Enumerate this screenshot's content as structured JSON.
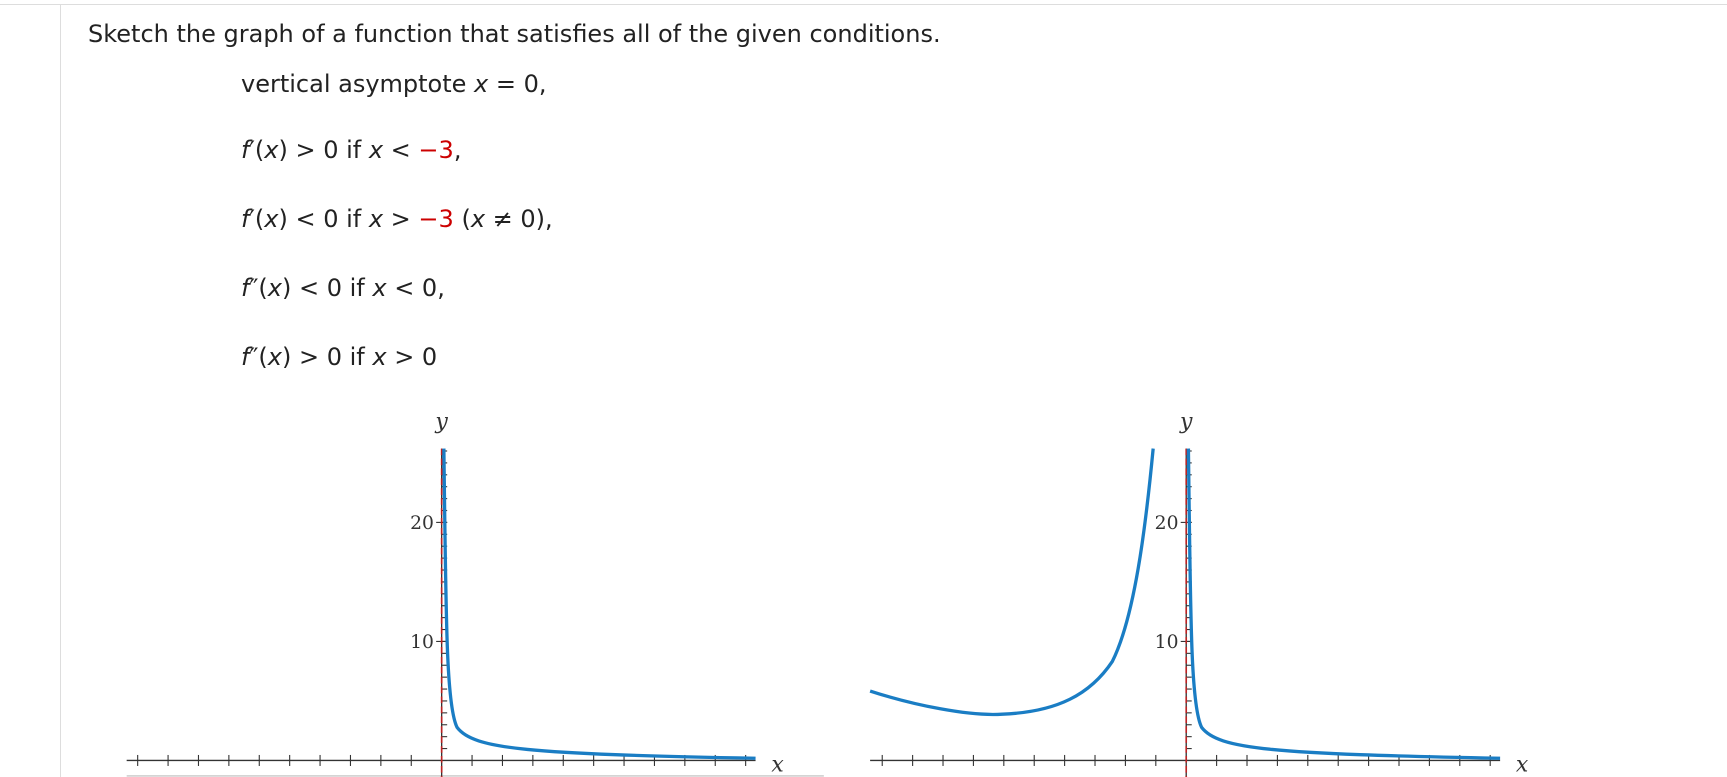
{
  "prompt": "Sketch the graph of a function that satisfies all of the given conditions.",
  "conditions": [
    [
      {
        "text": "vertical asymptote "
      },
      {
        "text": "x",
        "italic": true
      },
      {
        "text": " = 0,"
      }
    ],
    [
      {
        "text": "f",
        "italic": true
      },
      {
        "text": "′("
      },
      {
        "text": "x",
        "italic": true
      },
      {
        "text": ") > 0 if "
      },
      {
        "text": "x",
        "italic": true
      },
      {
        "text": " < "
      },
      {
        "text": "−3",
        "color": "#cc0000"
      },
      {
        "text": ","
      }
    ],
    [
      {
        "text": "f",
        "italic": true
      },
      {
        "text": "′("
      },
      {
        "text": "x",
        "italic": true
      },
      {
        "text": ") < 0 if "
      },
      {
        "text": "x",
        "italic": true
      },
      {
        "text": " > "
      },
      {
        "text": "−3",
        "color": "#cc0000"
      },
      {
        "text": " ("
      },
      {
        "text": "x",
        "italic": true
      },
      {
        "text": " ≠ 0),"
      }
    ],
    [
      {
        "text": "f",
        "italic": true
      },
      {
        "text": "″("
      },
      {
        "text": "x",
        "italic": true
      },
      {
        "text": ") < 0 if "
      },
      {
        "text": "x",
        "italic": true
      },
      {
        "text": " < 0,"
      }
    ],
    [
      {
        "text": "f",
        "italic": true
      },
      {
        "text": "″("
      },
      {
        "text": "x",
        "italic": true
      },
      {
        "text": ") > 0 if "
      },
      {
        "text": "x",
        "italic": true
      },
      {
        "text": " > 0"
      }
    ]
  ],
  "graphs": [
    {
      "y_label": "y",
      "x_label": "x",
      "y_tick_labels": [
        "20",
        "10"
      ]
    },
    {
      "y_label": "y",
      "x_label": "x",
      "y_tick_labels": [
        "20",
        "10"
      ]
    }
  ]
}
